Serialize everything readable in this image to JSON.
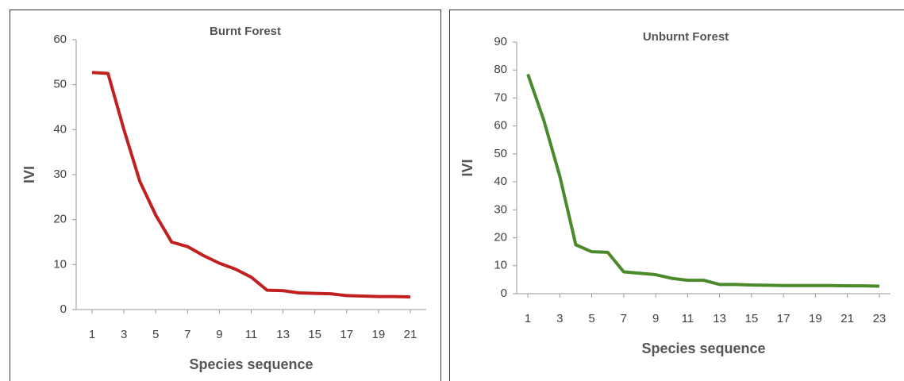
{
  "chart_data": [
    {
      "type": "line",
      "title": "Burnt Forest",
      "x_label": "Species sequence",
      "y_label": "IVI",
      "x": [
        1,
        2,
        3,
        4,
        5,
        6,
        7,
        8,
        9,
        10,
        11,
        12,
        13,
        14,
        15,
        16,
        17,
        18,
        19,
        20,
        21
      ],
      "series": [
        {
          "name": "Burnt Forest",
          "color": "#c0201f",
          "values": [
            52.7,
            52.5,
            40,
            28.5,
            21,
            15,
            14,
            12,
            10.3,
            9,
            7.2,
            4.3,
            4.2,
            3.7,
            3.6,
            3.5,
            3.1,
            3,
            2.9,
            2.9,
            2.8
          ]
        }
      ],
      "xlim": [
        0,
        22
      ],
      "xticks": [
        1,
        3,
        5,
        7,
        9,
        11,
        13,
        15,
        17,
        19,
        21
      ],
      "ylim": [
        0,
        60
      ],
      "yticks": [
        0,
        10,
        20,
        30,
        40,
        50,
        60
      ]
    },
    {
      "type": "line",
      "title": "Unburnt Forest",
      "x_label": "Species sequence",
      "y_label": "IVI",
      "x": [
        1,
        2,
        3,
        4,
        5,
        6,
        7,
        8,
        9,
        10,
        11,
        12,
        13,
        14,
        15,
        16,
        17,
        18,
        19,
        20,
        21,
        22,
        23
      ],
      "series": [
        {
          "name": "Unburnt Forest",
          "color": "#4a8a2a",
          "values": [
            78.5,
            62,
            42,
            17.5,
            15,
            14.8,
            7.8,
            7.3,
            6.8,
            5.5,
            4.8,
            4.8,
            3.3,
            3.3,
            3.1,
            3,
            2.9,
            2.9,
            2.9,
            2.9,
            2.8,
            2.8,
            2.7
          ]
        }
      ],
      "xlim": [
        0.3,
        23.7
      ],
      "xticks": [
        1,
        3,
        5,
        7,
        9,
        11,
        13,
        15,
        17,
        19,
        21,
        23
      ],
      "ylim": [
        0,
        90
      ],
      "yticks": [
        0,
        10,
        20,
        30,
        40,
        50,
        60,
        70,
        80,
        90
      ]
    }
  ]
}
